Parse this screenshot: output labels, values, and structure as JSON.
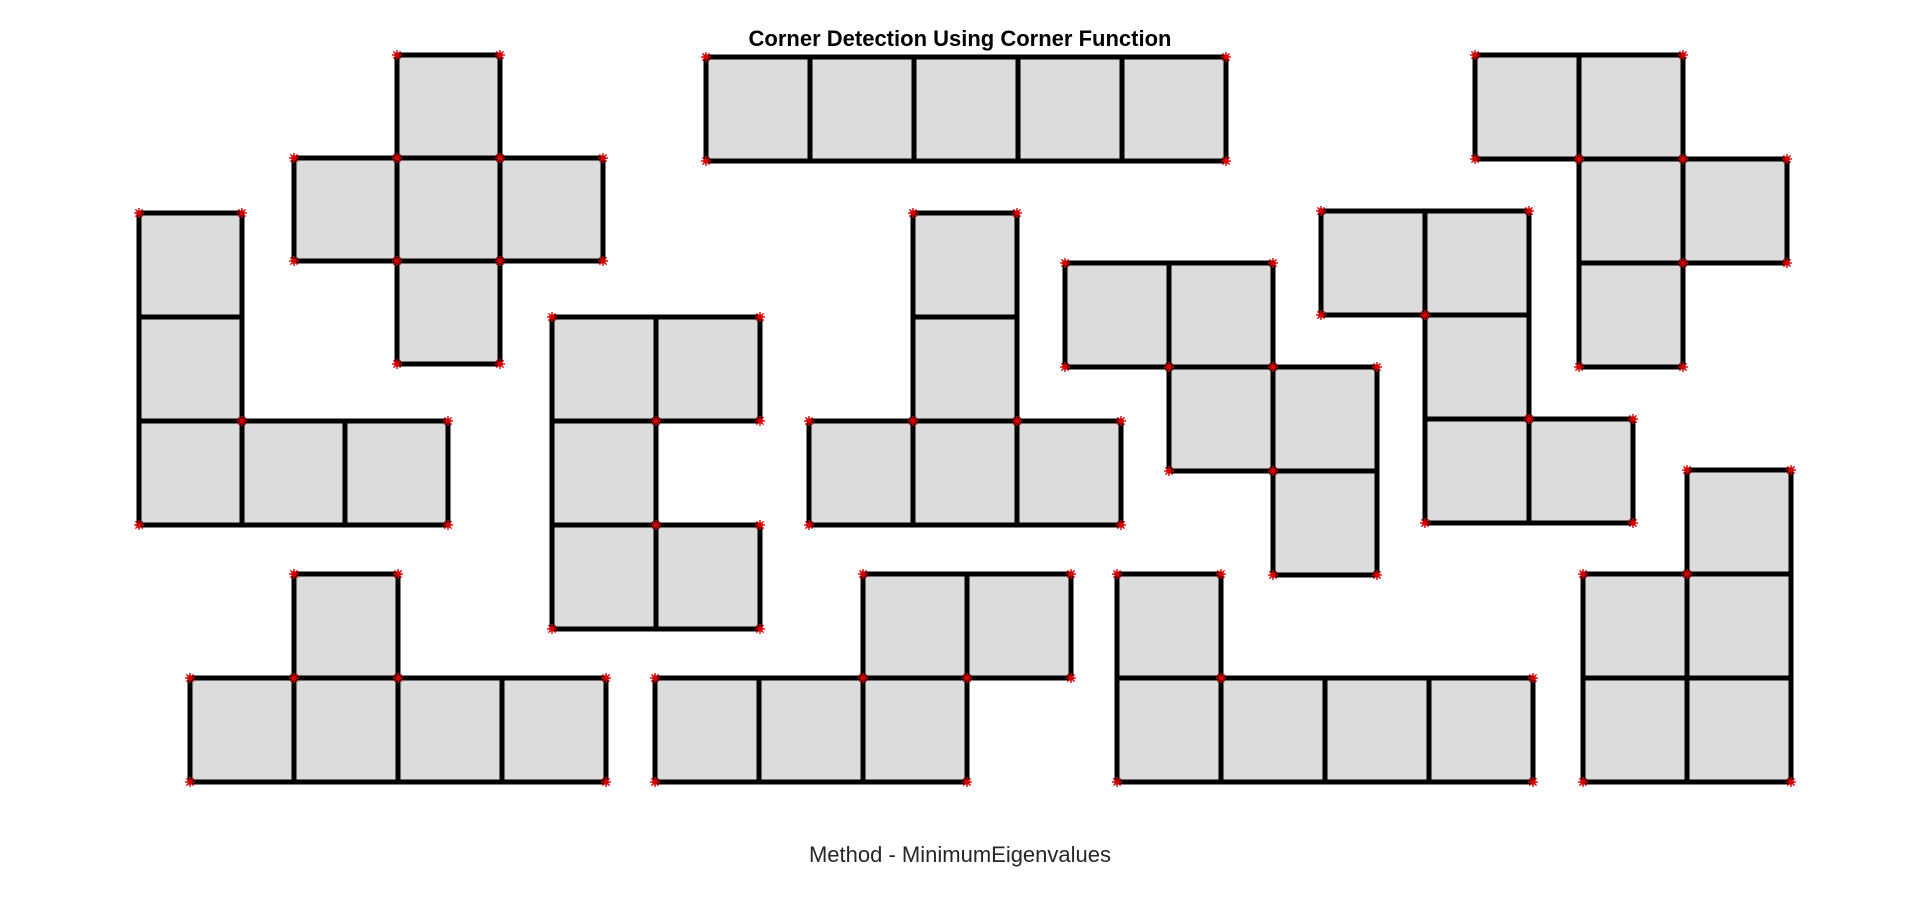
{
  "figure": {
    "title": "Corner Detection Using Corner Function",
    "xlabel": "Method - MinimumEigenvalues"
  },
  "colors": {
    "background": "#ffffff",
    "tile_fill": "#dcdcdc",
    "tile_stroke": "#000000",
    "corner_marker": "#e00000"
  },
  "icons": {
    "corner_marker": "red-asterisk-marker"
  }
}
